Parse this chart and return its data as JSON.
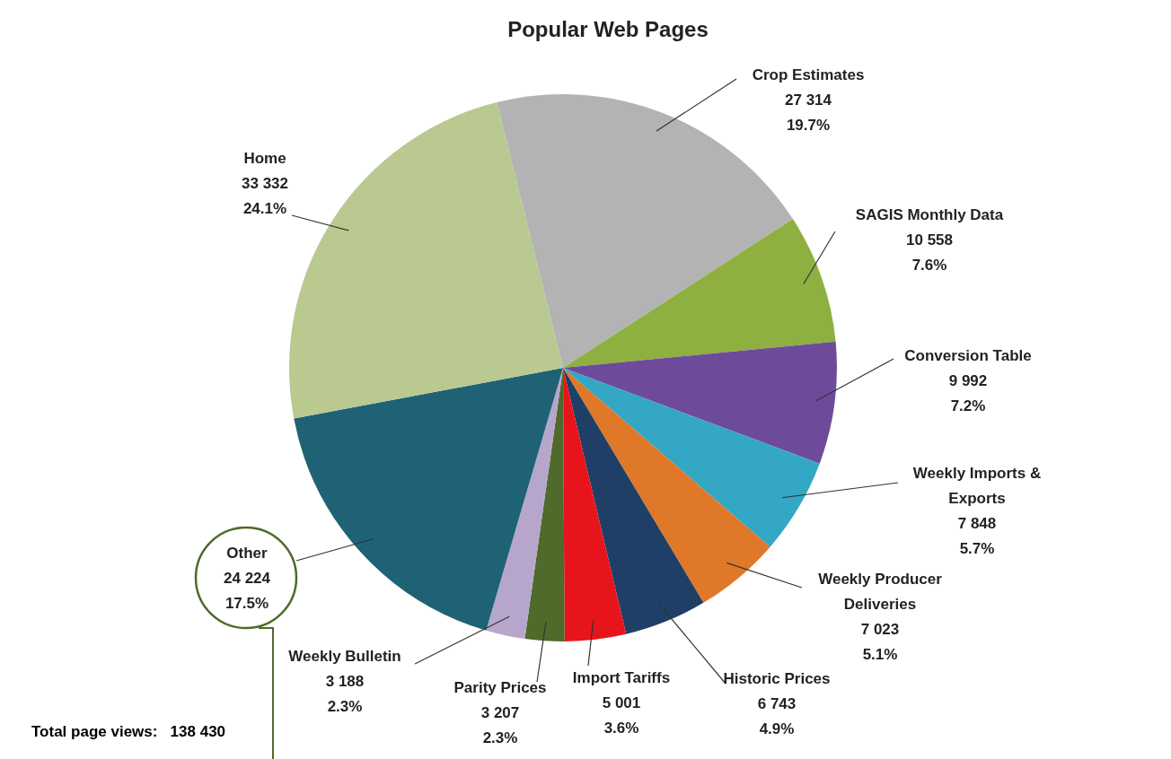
{
  "chart_data": {
    "type": "pie",
    "title": "Popular Web Pages",
    "categories": [
      "Crop Estimates",
      "SAGIS Monthly Data",
      "Conversion Table",
      "Weekly Imports & Exports",
      "Weekly Producer Deliveries",
      "Historic Prices",
      "Import Tariffs",
      "Parity Prices",
      "Weekly Bulletin",
      "Other",
      "Home"
    ],
    "values": [
      27314,
      10558,
      9992,
      7848,
      7023,
      6743,
      5001,
      3207,
      3188,
      24224,
      33332
    ],
    "value_labels": [
      "27 314\n19.7%",
      "10 558\n7.6%",
      "9 992\n7.2%",
      "7 848\n5.7%",
      "7 023\n5.1%",
      "6 743\n4.9%",
      "5 001\n3.6%",
      "3 207\n2.3%",
      "3 188\n2.3%",
      "24 224\n17.5%",
      "33 332\n24.1%"
    ],
    "colors": [
      "#b3b3b3",
      "#8db040",
      "#6e4b9a",
      "#34a7c4",
      "#e0782a",
      "#1f3f66",
      "#e8141b",
      "#4f6a2a",
      "#b7a6cc",
      "#1f6276",
      "#b9c98f"
    ],
    "annotations": [
      "Total page views:   138 430"
    ],
    "legend": false
  }
}
